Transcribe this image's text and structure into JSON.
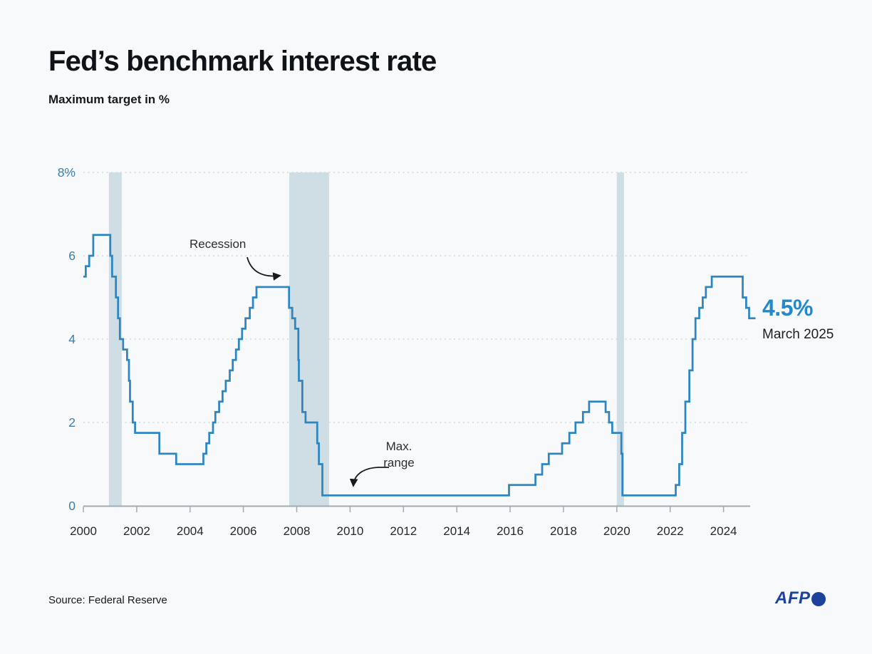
{
  "header": {
    "title": "Fed’s benchmark interest rate",
    "subtitle": "Maximum target in %"
  },
  "annotations": {
    "recession": "Recession",
    "max_range_line1": "Max.",
    "max_range_line2": "range",
    "latest_value": "4.5%",
    "latest_date": "March 2025"
  },
  "footer": {
    "source": "Source: Federal Reserve",
    "logo": "AFP"
  },
  "chart_data": {
    "type": "line",
    "title": "Fed’s benchmark interest rate",
    "subtitle": "Maximum target in %",
    "ylabel": "Maximum target in %",
    "xlabel": "",
    "xlim": [
      2000,
      2025.3
    ],
    "ylim": [
      0,
      8
    ],
    "grid": "dotted-horizontal",
    "x_ticks": [
      2000,
      2002,
      2004,
      2006,
      2008,
      2010,
      2012,
      2014,
      2016,
      2018,
      2020,
      2022,
      2024
    ],
    "y_ticks": {
      "values": [
        8,
        6,
        4,
        2,
        0
      ],
      "labels": [
        "8%",
        "6",
        "4",
        "2",
        "0"
      ]
    },
    "recession_bands": [
      [
        2000.96,
        2001.44
      ],
      [
        2007.72,
        2009.21
      ],
      [
        2020.0,
        2020.27
      ]
    ],
    "series": [
      {
        "name": "Fed benchmark interest rate (maximum target, %)",
        "points": [
          [
            2000.0,
            5.5
          ],
          [
            2000.09,
            5.75
          ],
          [
            2000.22,
            6.0
          ],
          [
            2000.37,
            6.5
          ],
          [
            2001.01,
            6.0
          ],
          [
            2001.08,
            5.5
          ],
          [
            2001.22,
            5.0
          ],
          [
            2001.3,
            4.5
          ],
          [
            2001.37,
            4.0
          ],
          [
            2001.49,
            3.75
          ],
          [
            2001.64,
            3.5
          ],
          [
            2001.71,
            3.0
          ],
          [
            2001.75,
            2.5
          ],
          [
            2001.85,
            2.0
          ],
          [
            2001.94,
            1.75
          ],
          [
            2002.85,
            1.25
          ],
          [
            2003.48,
            1.0
          ],
          [
            2004.5,
            1.25
          ],
          [
            2004.61,
            1.5
          ],
          [
            2004.72,
            1.75
          ],
          [
            2004.86,
            2.0
          ],
          [
            2004.95,
            2.25
          ],
          [
            2005.09,
            2.5
          ],
          [
            2005.22,
            2.75
          ],
          [
            2005.34,
            3.0
          ],
          [
            2005.49,
            3.25
          ],
          [
            2005.6,
            3.5
          ],
          [
            2005.72,
            3.75
          ],
          [
            2005.83,
            4.0
          ],
          [
            2005.95,
            4.25
          ],
          [
            2006.08,
            4.5
          ],
          [
            2006.24,
            4.75
          ],
          [
            2006.36,
            5.0
          ],
          [
            2006.49,
            5.25
          ],
          [
            2007.71,
            4.75
          ],
          [
            2007.83,
            4.5
          ],
          [
            2007.94,
            4.25
          ],
          [
            2008.06,
            3.5
          ],
          [
            2008.08,
            3.0
          ],
          [
            2008.21,
            2.25
          ],
          [
            2008.33,
            2.0
          ],
          [
            2008.77,
            1.5
          ],
          [
            2008.83,
            1.0
          ],
          [
            2008.96,
            0.25
          ],
          [
            2015.96,
            0.5
          ],
          [
            2016.95,
            0.75
          ],
          [
            2017.2,
            1.0
          ],
          [
            2017.45,
            1.25
          ],
          [
            2017.95,
            1.5
          ],
          [
            2018.22,
            1.75
          ],
          [
            2018.45,
            2.0
          ],
          [
            2018.73,
            2.25
          ],
          [
            2018.96,
            2.5
          ],
          [
            2019.58,
            2.25
          ],
          [
            2019.71,
            2.0
          ],
          [
            2019.83,
            1.75
          ],
          [
            2020.17,
            1.25
          ],
          [
            2020.21,
            0.25
          ],
          [
            2022.21,
            0.5
          ],
          [
            2022.34,
            1.0
          ],
          [
            2022.45,
            1.75
          ],
          [
            2022.57,
            2.5
          ],
          [
            2022.72,
            3.25
          ],
          [
            2022.84,
            4.0
          ],
          [
            2022.95,
            4.5
          ],
          [
            2023.09,
            4.75
          ],
          [
            2023.22,
            5.0
          ],
          [
            2023.34,
            5.25
          ],
          [
            2023.56,
            5.5
          ],
          [
            2024.72,
            5.0
          ],
          [
            2024.85,
            4.75
          ],
          [
            2024.96,
            4.5
          ],
          [
            2025.2,
            4.5
          ]
        ]
      }
    ],
    "colors": {
      "line": "#2e86c1",
      "recession_band": "#cfdde4",
      "gridline": "#d4d9dd",
      "axis": "#a3aab1",
      "y_tick_label": "#3f7da8",
      "x_tick_label": "#26292d",
      "annotation_arrow": "#1a1a1a",
      "latest_value": "#2389cb",
      "afp_blue": "#1c429b",
      "background": "#f7f9fa"
    }
  }
}
